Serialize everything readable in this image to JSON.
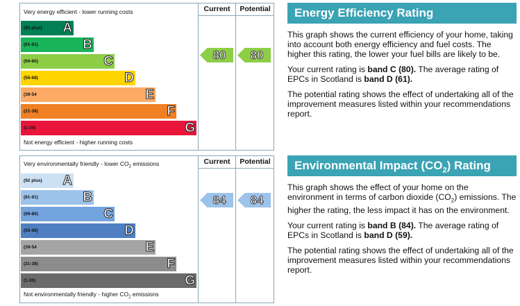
{
  "energy": {
    "top_caption": "Very energy efficient - lower running costs",
    "bottom_caption": "Not energy efficient - higher running costs",
    "col_current": "Current",
    "col_potential": "Potential",
    "bands": [
      {
        "range": "(92 plus)",
        "letter": "A",
        "color": "#008054"
      },
      {
        "range": "(81-91)",
        "letter": "B",
        "color": "#19b459"
      },
      {
        "range": "(69-80)",
        "letter": "C",
        "color": "#8dce46"
      },
      {
        "range": "(55-68)",
        "letter": "D",
        "color": "#ffd500"
      },
      {
        "range": "(39-54",
        "letter": "E",
        "color": "#fcaa65"
      },
      {
        "range": "(21-38)",
        "letter": "F",
        "color": "#ef8023"
      },
      {
        "range": "(1-20)",
        "letter": "G",
        "color": "#e9153b"
      }
    ],
    "current": "80",
    "potential": "80",
    "arrow_color": "#8dce46"
  },
  "environment": {
    "top_caption": "Very environmentally friendly - lower CO",
    "top_caption_sub": "2",
    "top_caption_tail": " emissions",
    "bottom_caption": "Not environmentally friendly - higher CO",
    "bottom_caption_sub": "2",
    "bottom_caption_tail": " emissions",
    "col_current": "Current",
    "col_potential": "Potential",
    "bands": [
      {
        "range": "(92 plus)",
        "letter": "A",
        "color": "#cde1f4"
      },
      {
        "range": "(81-91)",
        "letter": "B",
        "color": "#9cc3ea"
      },
      {
        "range": "(69-80)",
        "letter": "C",
        "color": "#72a3dd"
      },
      {
        "range": "(55-68)",
        "letter": "D",
        "color": "#4f7fc1"
      },
      {
        "range": "(39-54",
        "letter": "E",
        "color": "#a5a5a5"
      },
      {
        "range": "(21-38)",
        "letter": "F",
        "color": "#8c8c8c"
      },
      {
        "range": "(1-20)",
        "letter": "G",
        "color": "#6b6b6b"
      }
    ],
    "current": "84",
    "potential": "84",
    "arrow_color": "#9cc3ea"
  },
  "energy_panel": {
    "title": "Energy Efficiency Rating",
    "p1": "This graph shows the current efficiency of your home, taking into account both energy efficiency and fuel costs. The higher this rating, the lower your fuel bills are likely to be.",
    "p2_a": "Your current rating is ",
    "p2_b": "band C (80).",
    "p2_c": " The average rating of EPCs in Scotland is ",
    "p2_d": "band D (61).",
    "p3": "The potential rating shows the effect of undertaking all of the improvement measures listed within your recommendations report."
  },
  "env_panel": {
    "title_a": "Environmental Impact (CO",
    "title_sub": "2",
    "title_b": ") Rating",
    "p1_a": "This graph shows the effect of your home on the environment in terms of carbon dioxide (CO",
    "p1_sub": "2",
    "p1_b": ") emissions. The higher the rating, the less impact it has on the environment.",
    "p2_a": "Your current rating is ",
    "p2_b": "band B (84).",
    "p2_c": " The average rating of EPCs in Scotland is ",
    "p2_d": "band D (59).",
    "p3": "The potential rating shows the effect of undertaking all of the improvement measures listed within your recommendations report."
  }
}
